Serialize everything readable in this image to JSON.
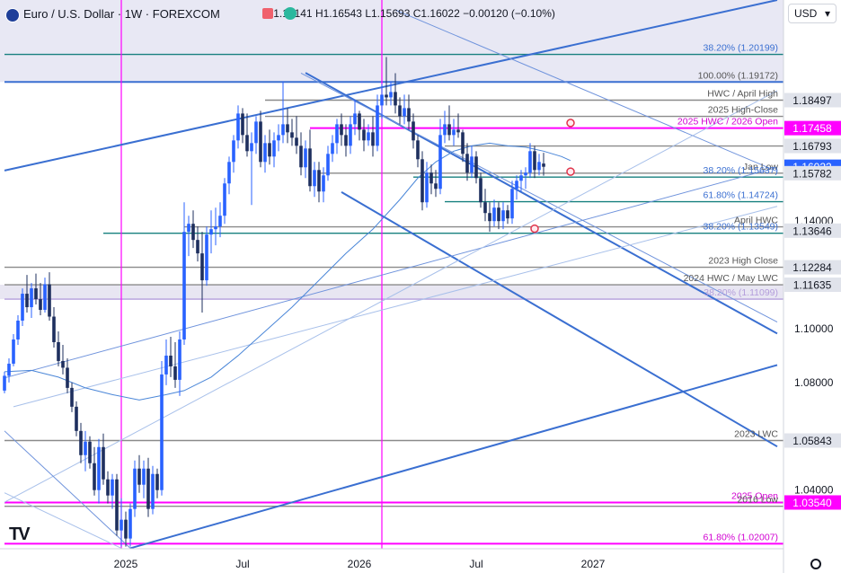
{
  "header": {
    "symbol": "Euro / U.S. Dollar · 1W · FOREXCOM",
    "open": "O1.16141",
    "high": "H1.16543",
    "low": "L1.15693",
    "close": "C1.16022",
    "change": "−0.00120 (−0.10%)",
    "currency": "USD"
  },
  "colors": {
    "up": "#2962ff",
    "down": "#1e2f5e",
    "blue": "#3a6fd1",
    "magenta": "#ff00ff",
    "teal": "#17807f",
    "gray": "#8a8a8a",
    "label_bg": "#e0e3eb"
  },
  "chart_data": {
    "type": "candlestick",
    "y_range": [
      1.0182,
      1.2222
    ],
    "x_ticks": [
      {
        "label": "2025",
        "t": 27
      },
      {
        "label": "Jul",
        "t": 53
      },
      {
        "label": "2026",
        "t": 79
      },
      {
        "label": "Jul",
        "t": 105
      },
      {
        "label": "2027",
        "t": 131
      }
    ],
    "y_ticks": [
      "1.14000",
      "1.10000",
      "1.08000",
      "1.04000"
    ],
    "y_tick_values": [
      1.14,
      1.1,
      1.08,
      1.04
    ],
    "price_tags": [
      {
        "text": "1.18497",
        "value": 1.18497,
        "style": "gray"
      },
      {
        "text": "1.17458",
        "value": 1.17458,
        "style": "magenta"
      },
      {
        "text": "1.16793",
        "value": 1.16793,
        "style": "gray"
      },
      {
        "text": "1.16022",
        "value": 1.16022,
        "style": "blue"
      },
      {
        "text": "1.15782",
        "value": 1.15782,
        "style": "gray"
      },
      {
        "text": "1.13646",
        "value": 1.13646,
        "style": "gray"
      },
      {
        "text": "1.12284",
        "value": 1.12284,
        "style": "gray"
      },
      {
        "text": "1.11635",
        "value": 1.11635,
        "style": "gray"
      },
      {
        "text": "1.05843",
        "value": 1.05843,
        "style": "gray"
      },
      {
        "text": "1.03540",
        "value": 1.0354,
        "style": "magenta"
      }
    ],
    "levels": [
      {
        "label": "38.20% (1.20199)",
        "value": 1.20199,
        "color": "teal",
        "t0": 0
      },
      {
        "label": "100.00% (1.19172)",
        "value": 1.19172,
        "color": "blue",
        "t0": 0
      },
      {
        "label": "HWC / April High",
        "value": 1.18497,
        "color": "gray",
        "t0": 58
      },
      {
        "label": "2025 High-Close",
        "value": 1.17893,
        "color": "gray",
        "t0": 58
      },
      {
        "label": "2025 HWC / 2026 Open",
        "value": 1.17458,
        "color": "magenta",
        "t0": 68
      },
      {
        "label": "",
        "value": 1.16793,
        "color": "gray",
        "t0": 98
      },
      {
        "label": "Jan Low",
        "value": 1.15782,
        "color": "gray",
        "t0": 70
      },
      {
        "label": "38.20% (1.15637)",
        "value": 1.15637,
        "color": "teal",
        "t0": 91
      },
      {
        "label": "61.80% (1.14724)",
        "value": 1.14724,
        "color": "teal",
        "t0": 98
      },
      {
        "label": "April HWC",
        "value": 1.13788,
        "color": "gray",
        "t0": 40
      },
      {
        "label": "38.20% (1.13549)",
        "value": 1.13549,
        "color": "teal",
        "t0": 22
      },
      {
        "label": "2023 High Close",
        "value": 1.12284,
        "color": "gray",
        "t0": 0
      },
      {
        "label": "2024 HWC / May LWC",
        "value": 1.11635,
        "color": "gray",
        "t0": 0
      },
      {
        "label": "38.20% (1.11099)",
        "value": 1.11099,
        "color": "lavender",
        "t0": 0
      },
      {
        "label": "2023 LWC",
        "value": 1.05843,
        "color": "gray",
        "t0": 0
      },
      {
        "label": "2025 Open",
        "value": 1.0354,
        "color": "magenta",
        "t0": 0
      },
      {
        "label": "2016 Low",
        "value": 1.03398,
        "color": "gray",
        "t0": 0
      },
      {
        "label": "61.80% (1.02007)",
        "value": 1.02007,
        "color": "magenta",
        "t0": 0
      }
    ],
    "circles": [
      {
        "t": 126,
        "value": 1.1765
      },
      {
        "t": 126,
        "value": 1.1584
      },
      {
        "t": 118,
        "value": 1.1372
      }
    ],
    "vertical_lines": [
      {
        "t": 26,
        "color": "magenta"
      },
      {
        "t": 84,
        "color": "magenta"
      }
    ],
    "trendlines": [
      {
        "t0": 0,
        "v0": 1.1588,
        "t1": 172,
        "v1": 1.2222,
        "style": "blue-thick"
      },
      {
        "t0": 67,
        "v0": 1.1951,
        "t1": 172,
        "v1": 1.0982,
        "style": "blue-thick"
      },
      {
        "t0": 75,
        "v0": 1.1508,
        "t1": 172,
        "v1": 1.0562,
        "style": "blue-thick"
      },
      {
        "t0": 28,
        "v0": 1.0184,
        "t1": 172,
        "v1": 1.0865,
        "style": "blue-thick"
      },
      {
        "t0": 87,
        "v0": 1.2185,
        "t1": 172,
        "v1": 1.1585,
        "style": "blue-thin"
      },
      {
        "t0": 66,
        "v0": 1.195,
        "t1": 172,
        "v1": 1.1025,
        "style": "blue-thin"
      },
      {
        "t0": 0,
        "v0": 1.0817,
        "t1": 172,
        "v1": 1.16,
        "style": "blue-thin"
      },
      {
        "t0": 0,
        "v0": 1.0355,
        "t1": 172,
        "v1": 1.1885,
        "style": "blue-faint"
      },
      {
        "t0": 2,
        "v0": 1.071,
        "t1": 172,
        "v1": 1.1455,
        "style": "blue-faint"
      },
      {
        "t0": 0,
        "v0": 1.062,
        "t1": 28,
        "v1": 1.0184,
        "style": "blue-thin"
      },
      {
        "t0": 0,
        "v0": 1.039,
        "t1": 26,
        "v1": 1.0184,
        "style": "blue-faint"
      }
    ],
    "moving_average": [
      [
        0,
        1.084
      ],
      [
        6,
        1.0845
      ],
      [
        12,
        1.082
      ],
      [
        18,
        1.078
      ],
      [
        24,
        1.0755
      ],
      [
        30,
        1.0735
      ],
      [
        36,
        1.0755
      ],
      [
        40,
        1.077
      ],
      [
        46,
        1.082
      ],
      [
        52,
        1.09
      ],
      [
        58,
        1.099
      ],
      [
        64,
        1.108
      ],
      [
        70,
        1.118
      ],
      [
        76,
        1.128
      ],
      [
        82,
        1.137
      ],
      [
        88,
        1.148
      ],
      [
        92,
        1.156
      ],
      [
        96,
        1.162
      ],
      [
        100,
        1.166
      ],
      [
        104,
        1.168
      ],
      [
        108,
        1.169
      ],
      [
        112,
        1.168
      ],
      [
        116,
        1.1675
      ],
      [
        120,
        1.166
      ],
      [
        124,
        1.164
      ],
      [
        126,
        1.1625
      ]
    ],
    "candles": [
      [
        1.077,
        1.084,
        1.076,
        1.0825
      ],
      [
        1.0825,
        1.089,
        1.08,
        1.087
      ],
      [
        1.087,
        1.098,
        1.086,
        1.096
      ],
      [
        1.096,
        1.105,
        1.094,
        1.103
      ],
      [
        1.103,
        1.115,
        1.101,
        1.113
      ],
      [
        1.113,
        1.12,
        1.106,
        1.108
      ],
      [
        1.108,
        1.117,
        1.104,
        1.115
      ],
      [
        1.115,
        1.1205,
        1.109,
        1.111
      ],
      [
        1.111,
        1.117,
        1.105,
        1.107
      ],
      [
        1.107,
        1.119,
        1.106,
        1.1165
      ],
      [
        1.1165,
        1.121,
        1.103,
        1.1045
      ],
      [
        1.1045,
        1.108,
        1.093,
        1.095
      ],
      [
        1.095,
        1.099,
        1.086,
        1.088
      ],
      [
        1.088,
        1.094,
        1.083,
        1.0855
      ],
      [
        1.0855,
        1.089,
        1.076,
        1.078
      ],
      [
        1.078,
        1.08,
        1.069,
        1.071
      ],
      [
        1.071,
        1.073,
        1.06,
        1.062
      ],
      [
        1.062,
        1.065,
        1.05,
        1.053
      ],
      [
        1.053,
        1.062,
        1.047,
        1.058
      ],
      [
        1.058,
        1.06,
        1.048,
        1.05
      ],
      [
        1.05,
        1.056,
        1.038,
        1.04
      ],
      [
        1.04,
        1.059,
        1.035,
        1.056
      ],
      [
        1.056,
        1.061,
        1.042,
        1.044
      ],
      [
        1.044,
        1.047,
        1.035,
        1.038
      ],
      [
        1.038,
        1.046,
        1.033,
        1.044
      ],
      [
        1.044,
        1.046,
        1.023,
        1.025
      ],
      [
        1.025,
        1.037,
        1.019,
        1.029
      ],
      [
        1.029,
        1.032,
        1.019,
        1.022
      ],
      [
        1.022,
        1.035,
        1.019,
        1.033
      ],
      [
        1.033,
        1.051,
        1.03,
        1.048
      ],
      [
        1.048,
        1.053,
        1.039,
        1.042
      ],
      [
        1.042,
        1.051,
        1.037,
        1.048
      ],
      [
        1.048,
        1.052,
        1.03,
        1.033
      ],
      [
        1.033,
        1.049,
        1.031,
        1.046
      ],
      [
        1.046,
        1.048,
        1.037,
        1.04
      ],
      [
        1.04,
        1.088,
        1.038,
        1.083
      ],
      [
        1.083,
        1.096,
        1.079,
        1.09
      ],
      [
        1.09,
        1.097,
        1.082,
        1.086
      ],
      [
        1.086,
        1.095,
        1.078,
        1.081
      ],
      [
        1.081,
        1.099,
        1.075,
        1.096
      ],
      [
        1.096,
        1.147,
        1.094,
        1.136
      ],
      [
        1.136,
        1.142,
        1.127,
        1.139
      ],
      [
        1.139,
        1.144,
        1.13,
        1.133
      ],
      [
        1.133,
        1.138,
        1.125,
        1.128
      ],
      [
        1.128,
        1.136,
        1.106,
        1.118
      ],
      [
        1.118,
        1.138,
        1.116,
        1.135
      ],
      [
        1.135,
        1.144,
        1.128,
        1.137
      ],
      [
        1.137,
        1.145,
        1.131,
        1.138
      ],
      [
        1.138,
        1.147,
        1.134,
        1.142
      ],
      [
        1.142,
        1.156,
        1.139,
        1.154
      ],
      [
        1.154,
        1.164,
        1.15,
        1.162
      ],
      [
        1.162,
        1.172,
        1.158,
        1.17
      ],
      [
        1.17,
        1.183,
        1.167,
        1.18
      ],
      [
        1.18,
        1.182,
        1.169,
        1.172
      ],
      [
        1.172,
        1.18,
        1.164,
        1.166
      ],
      [
        1.166,
        1.173,
        1.146,
        1.169
      ],
      [
        1.169,
        1.179,
        1.165,
        1.177
      ],
      [
        1.177,
        1.181,
        1.16,
        1.162
      ],
      [
        1.162,
        1.172,
        1.158,
        1.169
      ],
      [
        1.169,
        1.174,
        1.161,
        1.164
      ],
      [
        1.164,
        1.173,
        1.16,
        1.17
      ],
      [
        1.17,
        1.176,
        1.166,
        1.172
      ],
      [
        1.172,
        1.192,
        1.169,
        1.176
      ],
      [
        1.176,
        1.182,
        1.169,
        1.173
      ],
      [
        1.173,
        1.178,
        1.168,
        1.171
      ],
      [
        1.171,
        1.179,
        1.165,
        1.168
      ],
      [
        1.168,
        1.173,
        1.157,
        1.16
      ],
      [
        1.16,
        1.17,
        1.156,
        1.167
      ],
      [
        1.167,
        1.174,
        1.151,
        1.153
      ],
      [
        1.153,
        1.162,
        1.149,
        1.159
      ],
      [
        1.159,
        1.162,
        1.147,
        1.151
      ],
      [
        1.151,
        1.16,
        1.147,
        1.157
      ],
      [
        1.157,
        1.168,
        1.155,
        1.165
      ],
      [
        1.165,
        1.172,
        1.162,
        1.169
      ],
      [
        1.169,
        1.178,
        1.165,
        1.176
      ],
      [
        1.176,
        1.18,
        1.168,
        1.172
      ],
      [
        1.172,
        1.176,
        1.164,
        1.168
      ],
      [
        1.168,
        1.179,
        1.165,
        1.176
      ],
      [
        1.176,
        1.185,
        1.172,
        1.18
      ],
      [
        1.18,
        1.181,
        1.17,
        1.174
      ],
      [
        1.174,
        1.178,
        1.166,
        1.17
      ],
      [
        1.17,
        1.176,
        1.168,
        1.173
      ],
      [
        1.173,
        1.179,
        1.164,
        1.168
      ],
      [
        1.168,
        1.187,
        1.166,
        1.183
      ],
      [
        1.183,
        1.191,
        1.178,
        1.187
      ],
      [
        1.187,
        1.201,
        1.183,
        1.186
      ],
      [
        1.186,
        1.192,
        1.183,
        1.188
      ],
      [
        1.188,
        1.195,
        1.18,
        1.183
      ],
      [
        1.183,
        1.186,
        1.176,
        1.179
      ],
      [
        1.179,
        1.187,
        1.176,
        1.182
      ],
      [
        1.182,
        1.187,
        1.174,
        1.177
      ],
      [
        1.177,
        1.18,
        1.167,
        1.17
      ],
      [
        1.17,
        1.172,
        1.16,
        1.163
      ],
      [
        1.163,
        1.166,
        1.144,
        1.147
      ],
      [
        1.147,
        1.162,
        1.145,
        1.158
      ],
      [
        1.158,
        1.161,
        1.15,
        1.154
      ],
      [
        1.154,
        1.159,
        1.149,
        1.152
      ],
      [
        1.152,
        1.178,
        1.15,
        1.172
      ],
      [
        1.172,
        1.181,
        1.169,
        1.176
      ],
      [
        1.176,
        1.183,
        1.17,
        1.172
      ],
      [
        1.172,
        1.178,
        1.168,
        1.174
      ],
      [
        1.174,
        1.18,
        1.171,
        1.173
      ],
      [
        1.173,
        1.174,
        1.162,
        1.165
      ],
      [
        1.165,
        1.169,
        1.155,
        1.158
      ],
      [
        1.158,
        1.168,
        1.156,
        1.164
      ],
      [
        1.164,
        1.166,
        1.154,
        1.156
      ],
      [
        1.156,
        1.158,
        1.145,
        1.147
      ],
      [
        1.147,
        1.152,
        1.14,
        1.143
      ],
      [
        1.143,
        1.147,
        1.136,
        1.14
      ],
      [
        1.14,
        1.148,
        1.138,
        1.145
      ],
      [
        1.145,
        1.147,
        1.137,
        1.14
      ],
      [
        1.14,
        1.147,
        1.137,
        1.144
      ],
      [
        1.144,
        1.146,
        1.139,
        1.141
      ],
      [
        1.141,
        1.155,
        1.139,
        1.152
      ],
      [
        1.152,
        1.157,
        1.148,
        1.155
      ],
      [
        1.155,
        1.159,
        1.151,
        1.157
      ],
      [
        1.157,
        1.16,
        1.152,
        1.158
      ],
      [
        1.158,
        1.169,
        1.156,
        1.166
      ],
      [
        1.166,
        1.168,
        1.156,
        1.159
      ],
      [
        1.159,
        1.165,
        1.157,
        1.162
      ],
      [
        1.1614,
        1.1654,
        1.1569,
        1.1602
      ]
    ]
  }
}
